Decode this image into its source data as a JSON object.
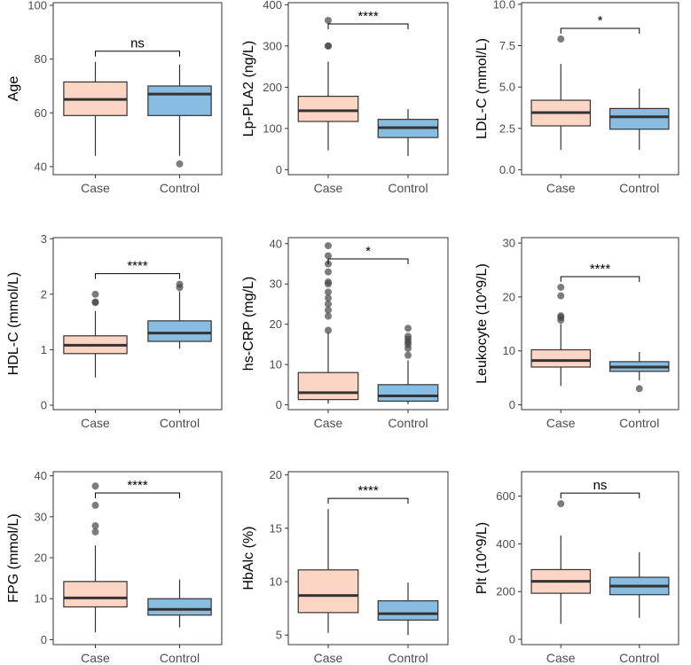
{
  "chart_data": [
    {
      "type": "box",
      "ylabel": "Age",
      "ylim": [
        37,
        101
      ],
      "yticks": [
        40,
        60,
        80,
        100
      ],
      "significance": "ns",
      "groups": [
        {
          "name": "Case",
          "color": "#fdd5c5",
          "whisker_low": 44,
          "q1": 59,
          "median": 65,
          "q3": 71.5,
          "whisker_high": 79,
          "outliers": []
        },
        {
          "name": "Control",
          "color": "#88bce0",
          "whisker_low": 44,
          "q1": 59,
          "median": 67,
          "q3": 70,
          "whisker_high": 78,
          "outliers": [
            41
          ]
        }
      ]
    },
    {
      "type": "box",
      "ylabel": "Lp-PLA2 (ng/L)",
      "ylim": [
        -12,
        405
      ],
      "yticks": [
        0,
        100,
        200,
        300,
        400
      ],
      "significance": "****",
      "groups": [
        {
          "name": "Case",
          "color": "#fdd5c5",
          "whisker_low": 47,
          "q1": 117,
          "median": 143,
          "q3": 178,
          "whisker_high": 262,
          "outliers": [
            300,
            300,
            362
          ]
        },
        {
          "name": "Control",
          "color": "#88bce0",
          "whisker_low": 33,
          "q1": 78,
          "median": 102,
          "q3": 122,
          "whisker_high": 147,
          "outliers": []
        }
      ]
    },
    {
      "type": "box",
      "ylabel": "LDL-C (mmol/L)",
      "ylim": [
        -0.3,
        10.1
      ],
      "yticks": [
        0.0,
        2.5,
        5.0,
        7.5,
        10.0
      ],
      "ytick_labels": [
        "0.0",
        "2.5",
        "5.0",
        "7.5",
        "10.0"
      ],
      "significance": "*",
      "groups": [
        {
          "name": "Case",
          "color": "#fdd5c5",
          "whisker_low": 1.2,
          "q1": 2.65,
          "median": 3.45,
          "q3": 4.2,
          "whisker_high": 6.4,
          "outliers": [
            7.9
          ]
        },
        {
          "name": "Control",
          "color": "#88bce0",
          "whisker_low": 1.2,
          "q1": 2.45,
          "median": 3.2,
          "q3": 3.7,
          "whisker_high": 4.9,
          "outliers": []
        }
      ]
    },
    {
      "type": "box",
      "ylabel": "HDL-C (mmol/L)",
      "ylim": [
        -0.08,
        3.02
      ],
      "yticks": [
        0,
        1,
        2,
        3
      ],
      "significance": "****",
      "groups": [
        {
          "name": "Case",
          "color": "#fdd5c5",
          "whisker_low": 0.5,
          "q1": 0.93,
          "median": 1.08,
          "q3": 1.25,
          "whisker_high": 1.7,
          "outliers": [
            1.85,
            1.86,
            2.0
          ]
        },
        {
          "name": "Control",
          "color": "#88bce0",
          "whisker_low": 1.02,
          "q1": 1.15,
          "median": 1.3,
          "q3": 1.52,
          "whisker_high": 2.05,
          "outliers": [
            2.12,
            2.18
          ]
        }
      ]
    },
    {
      "type": "box",
      "ylabel": "hs-CRP (mg/L)",
      "ylim": [
        -1.2,
        41.5
      ],
      "yticks": [
        0,
        10,
        20,
        30,
        40
      ],
      "significance": "*",
      "groups": [
        {
          "name": "Case",
          "color": "#fdd5c5",
          "whisker_low": 0.3,
          "q1": 1.3,
          "median": 3.0,
          "q3": 8.0,
          "whisker_high": 18.0,
          "outliers": [
            18.5,
            22,
            23.5,
            25,
            26.5,
            28,
            30,
            30.5,
            33,
            35,
            37,
            39.5
          ]
        },
        {
          "name": "Control",
          "color": "#88bce0",
          "whisker_low": 0.2,
          "q1": 0.9,
          "median": 2.2,
          "q3": 5.0,
          "whisker_high": 11.0,
          "outliers": [
            12.3,
            14,
            15,
            15.6,
            16.3,
            17,
            19
          ]
        }
      ]
    },
    {
      "type": "box",
      "ylabel": "Leukocyte (10^9/L)",
      "ylim": [
        -0.9,
        31
      ],
      "yticks": [
        0,
        10,
        20,
        30
      ],
      "significance": "****",
      "groups": [
        {
          "name": "Case",
          "color": "#fdd5c5",
          "whisker_low": 3.5,
          "q1": 7.0,
          "median": 8.2,
          "q3": 10.2,
          "whisker_high": 15.0,
          "outliers": [
            15.7,
            16.2,
            16.5,
            20.2,
            21.8
          ]
        },
        {
          "name": "Control",
          "color": "#88bce0",
          "whisker_low": 4.5,
          "q1": 6.2,
          "median": 7.0,
          "q3": 8.0,
          "whisker_high": 9.8,
          "outliers": [
            3.0
          ]
        }
      ]
    },
    {
      "type": "box",
      "ylabel": "FPG (mmol/L)",
      "ylim": [
        -1.2,
        41
      ],
      "yticks": [
        0,
        10,
        20,
        30,
        40
      ],
      "significance": "****",
      "groups": [
        {
          "name": "Case",
          "color": "#fdd5c5",
          "whisker_low": 1.8,
          "q1": 8.0,
          "median": 10.2,
          "q3": 14.2,
          "whisker_high": 23.0,
          "outliers": [
            26.3,
            27.8,
            32.8,
            37.5
          ]
        },
        {
          "name": "Control",
          "color": "#88bce0",
          "whisker_low": 3.0,
          "q1": 6.0,
          "median": 7.4,
          "q3": 10.0,
          "whisker_high": 14.7,
          "outliers": []
        }
      ]
    },
    {
      "type": "box",
      "ylabel": "HbAlc (%)",
      "ylim": [
        4.1,
        20.3
      ],
      "yticks": [
        5,
        10,
        15,
        20
      ],
      "significance": "****",
      "groups": [
        {
          "name": "Case",
          "color": "#fdd5c5",
          "whisker_low": 5.2,
          "q1": 7.1,
          "median": 8.7,
          "q3": 11.1,
          "whisker_high": 16.8,
          "outliers": []
        },
        {
          "name": "Control",
          "color": "#88bce0",
          "whisker_low": 5.0,
          "q1": 6.4,
          "median": 7.0,
          "q3": 8.2,
          "whisker_high": 9.9,
          "outliers": []
        }
      ]
    },
    {
      "type": "box",
      "ylabel": "Plt (10^9/L)",
      "ylim": [
        -22,
        702
      ],
      "yticks": [
        0,
        200,
        400,
        600
      ],
      "significance": "ns",
      "groups": [
        {
          "name": "Case",
          "color": "#fdd5c5",
          "whisker_low": 65,
          "q1": 193,
          "median": 243,
          "q3": 292,
          "whisker_high": 435,
          "outliers": [
            568
          ]
        },
        {
          "name": "Control",
          "color": "#88bce0",
          "whisker_low": 90,
          "q1": 187,
          "median": 223,
          "q3": 260,
          "whisker_high": 365,
          "outliers": []
        }
      ]
    }
  ],
  "style": {
    "box_stroke": "#333333",
    "panel_border": "#333333",
    "outlier_color": "#444444",
    "tick_color": "#333333"
  }
}
